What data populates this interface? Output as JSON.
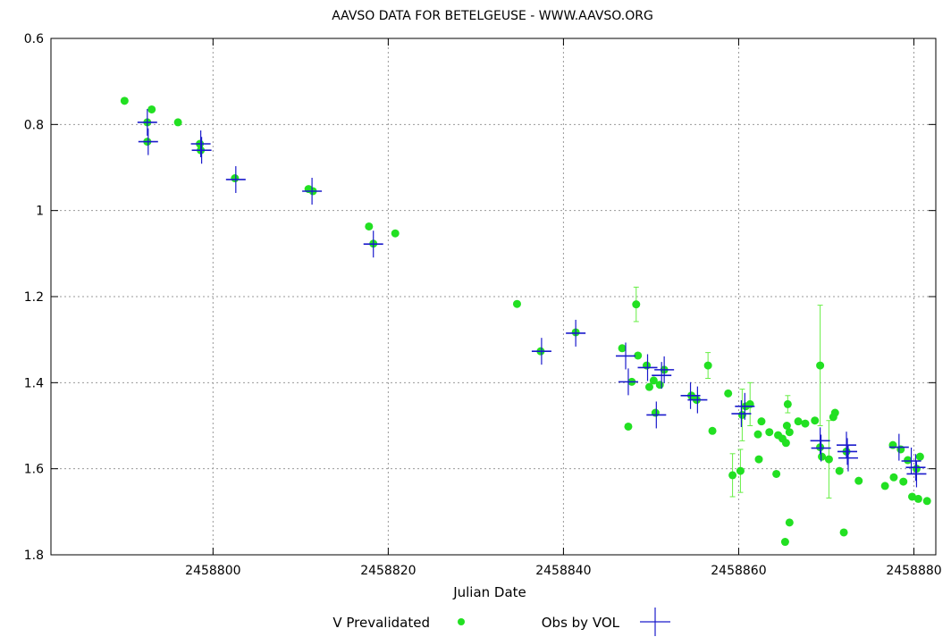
{
  "chart_data": {
    "type": "scatter",
    "title": "AAVSO DATA FOR BETELGEUSE - WWW.AAVSO.ORG",
    "xlabel": "Julian Date",
    "ylabel": "",
    "xlim": [
      2458781.5,
      2458882.5
    ],
    "ylim": [
      0.6,
      1.8
    ],
    "y_inverted": true,
    "grid": true,
    "legend_placement": "bottom",
    "x_ticks": [
      2458800,
      2458820,
      2458840,
      2458860,
      2458880
    ],
    "y_ticks": [
      0.6,
      0.8,
      1,
      1.2,
      1.4,
      1.6,
      1.8
    ],
    "x_tick_labels": [
      "2458800",
      "2458820",
      "2458840",
      "2458860",
      "2458880"
    ],
    "y_tick_labels": [
      "0.6",
      "0.8",
      "1",
      "1.2",
      "1.4",
      "1.6",
      "1.8"
    ],
    "colors": {
      "series1": "#22e022",
      "series1_err": "#66ee44",
      "series2": "#1a1acc"
    },
    "series": [
      {
        "name": "V Prevalidated",
        "marker": "circle",
        "points": [
          {
            "x": 2458789.9,
            "y": 0.745
          },
          {
            "x": 2458792.5,
            "y": 0.795
          },
          {
            "x": 2458792.5,
            "y": 0.84
          },
          {
            "x": 2458793.0,
            "y": 0.765
          },
          {
            "x": 2458796.0,
            "y": 0.795
          },
          {
            "x": 2458798.5,
            "y": 0.845
          },
          {
            "x": 2458798.6,
            "y": 0.86
          },
          {
            "x": 2458802.5,
            "y": 0.925
          },
          {
            "x": 2458810.9,
            "y": 0.95
          },
          {
            "x": 2458811.4,
            "y": 0.955
          },
          {
            "x": 2458817.8,
            "y": 1.037
          },
          {
            "x": 2458818.3,
            "y": 1.077
          },
          {
            "x": 2458820.8,
            "y": 1.053
          },
          {
            "x": 2458834.7,
            "y": 1.217
          },
          {
            "x": 2458837.4,
            "y": 1.327
          },
          {
            "x": 2458841.4,
            "y": 1.283
          },
          {
            "x": 2458846.7,
            "y": 1.32
          },
          {
            "x": 2458847.4,
            "y": 1.502
          },
          {
            "x": 2458847.8,
            "y": 1.398
          },
          {
            "x": 2458848.3,
            "y": 1.218,
            "err": 0.04
          },
          {
            "x": 2458848.5,
            "y": 1.337
          },
          {
            "x": 2458849.5,
            "y": 1.36
          },
          {
            "x": 2458849.8,
            "y": 1.41
          },
          {
            "x": 2458850.3,
            "y": 1.395
          },
          {
            "x": 2458850.5,
            "y": 1.47
          },
          {
            "x": 2458851.0,
            "y": 1.405
          },
          {
            "x": 2458851.5,
            "y": 1.37
          },
          {
            "x": 2458854.6,
            "y": 1.43
          },
          {
            "x": 2458855.2,
            "y": 1.44
          },
          {
            "x": 2458856.5,
            "y": 1.36,
            "err": 0.03
          },
          {
            "x": 2458857.0,
            "y": 1.512
          },
          {
            "x": 2458858.8,
            "y": 1.425
          },
          {
            "x": 2458859.3,
            "y": 1.615,
            "err": 0.05
          },
          {
            "x": 2458860.2,
            "y": 1.605,
            "err": 0.05
          },
          {
            "x": 2458860.4,
            "y": 1.475,
            "err": 0.06
          },
          {
            "x": 2458860.8,
            "y": 1.455
          },
          {
            "x": 2458861.3,
            "y": 1.45,
            "err": 0.05
          },
          {
            "x": 2458862.2,
            "y": 1.52
          },
          {
            "x": 2458862.3,
            "y": 1.578
          },
          {
            "x": 2458862.6,
            "y": 1.49
          },
          {
            "x": 2458863.5,
            "y": 1.515
          },
          {
            "x": 2458864.3,
            "y": 1.612
          },
          {
            "x": 2458864.5,
            "y": 1.522
          },
          {
            "x": 2458865.0,
            "y": 1.53
          },
          {
            "x": 2458865.3,
            "y": 1.77
          },
          {
            "x": 2458865.4,
            "y": 1.54
          },
          {
            "x": 2458865.5,
            "y": 1.5
          },
          {
            "x": 2458865.6,
            "y": 1.45,
            "err": 0.02
          },
          {
            "x": 2458865.8,
            "y": 1.725
          },
          {
            "x": 2458865.8,
            "y": 1.515
          },
          {
            "x": 2458866.8,
            "y": 1.49
          },
          {
            "x": 2458867.6,
            "y": 1.495
          },
          {
            "x": 2458868.7,
            "y": 1.488
          },
          {
            "x": 2458869.3,
            "y": 1.36,
            "err": 0.14
          },
          {
            "x": 2458869.3,
            "y": 1.55
          },
          {
            "x": 2458869.5,
            "y": 1.572
          },
          {
            "x": 2458870.3,
            "y": 1.578,
            "err": 0.09
          },
          {
            "x": 2458870.8,
            "y": 1.48
          },
          {
            "x": 2458871.0,
            "y": 1.47
          },
          {
            "x": 2458871.5,
            "y": 1.605
          },
          {
            "x": 2458872.0,
            "y": 1.748
          },
          {
            "x": 2458872.3,
            "y": 1.56
          },
          {
            "x": 2458873.7,
            "y": 1.628
          },
          {
            "x": 2458876.7,
            "y": 1.64
          },
          {
            "x": 2458877.6,
            "y": 1.545
          },
          {
            "x": 2458877.7,
            "y": 1.62
          },
          {
            "x": 2458878.5,
            "y": 1.555
          },
          {
            "x": 2458878.8,
            "y": 1.63
          },
          {
            "x": 2458879.3,
            "y": 1.58
          },
          {
            "x": 2458879.8,
            "y": 1.665
          },
          {
            "x": 2458880.3,
            "y": 1.6
          },
          {
            "x": 2458880.5,
            "y": 1.67
          },
          {
            "x": 2458880.7,
            "y": 1.572
          },
          {
            "x": 2458881.5,
            "y": 1.675
          }
        ]
      },
      {
        "name": "Obs by VOL",
        "marker": "cross",
        "points": [
          {
            "x": 2458792.5,
            "y": 0.795
          },
          {
            "x": 2458792.6,
            "y": 0.84
          },
          {
            "x": 2458798.6,
            "y": 0.845
          },
          {
            "x": 2458798.7,
            "y": 0.86
          },
          {
            "x": 2458802.6,
            "y": 0.928
          },
          {
            "x": 2458811.3,
            "y": 0.955
          },
          {
            "x": 2458818.3,
            "y": 1.078
          },
          {
            "x": 2458837.5,
            "y": 1.327
          },
          {
            "x": 2458841.4,
            "y": 1.285
          },
          {
            "x": 2458847.1,
            "y": 1.338
          },
          {
            "x": 2458847.4,
            "y": 1.398
          },
          {
            "x": 2458849.6,
            "y": 1.365
          },
          {
            "x": 2458850.6,
            "y": 1.475
          },
          {
            "x": 2458851.2,
            "y": 1.383
          },
          {
            "x": 2458851.5,
            "y": 1.37
          },
          {
            "x": 2458854.5,
            "y": 1.43
          },
          {
            "x": 2458855.3,
            "y": 1.44
          },
          {
            "x": 2458860.3,
            "y": 1.472
          },
          {
            "x": 2458860.7,
            "y": 1.455
          },
          {
            "x": 2458869.3,
            "y": 1.535
          },
          {
            "x": 2458869.4,
            "y": 1.552
          },
          {
            "x": 2458872.3,
            "y": 1.545
          },
          {
            "x": 2458872.4,
            "y": 1.56
          },
          {
            "x": 2458872.5,
            "y": 1.575
          },
          {
            "x": 2458878.3,
            "y": 1.55
          },
          {
            "x": 2458879.7,
            "y": 1.582
          },
          {
            "x": 2458880.2,
            "y": 1.597
          },
          {
            "x": 2458880.3,
            "y": 1.612
          }
        ]
      }
    ]
  }
}
